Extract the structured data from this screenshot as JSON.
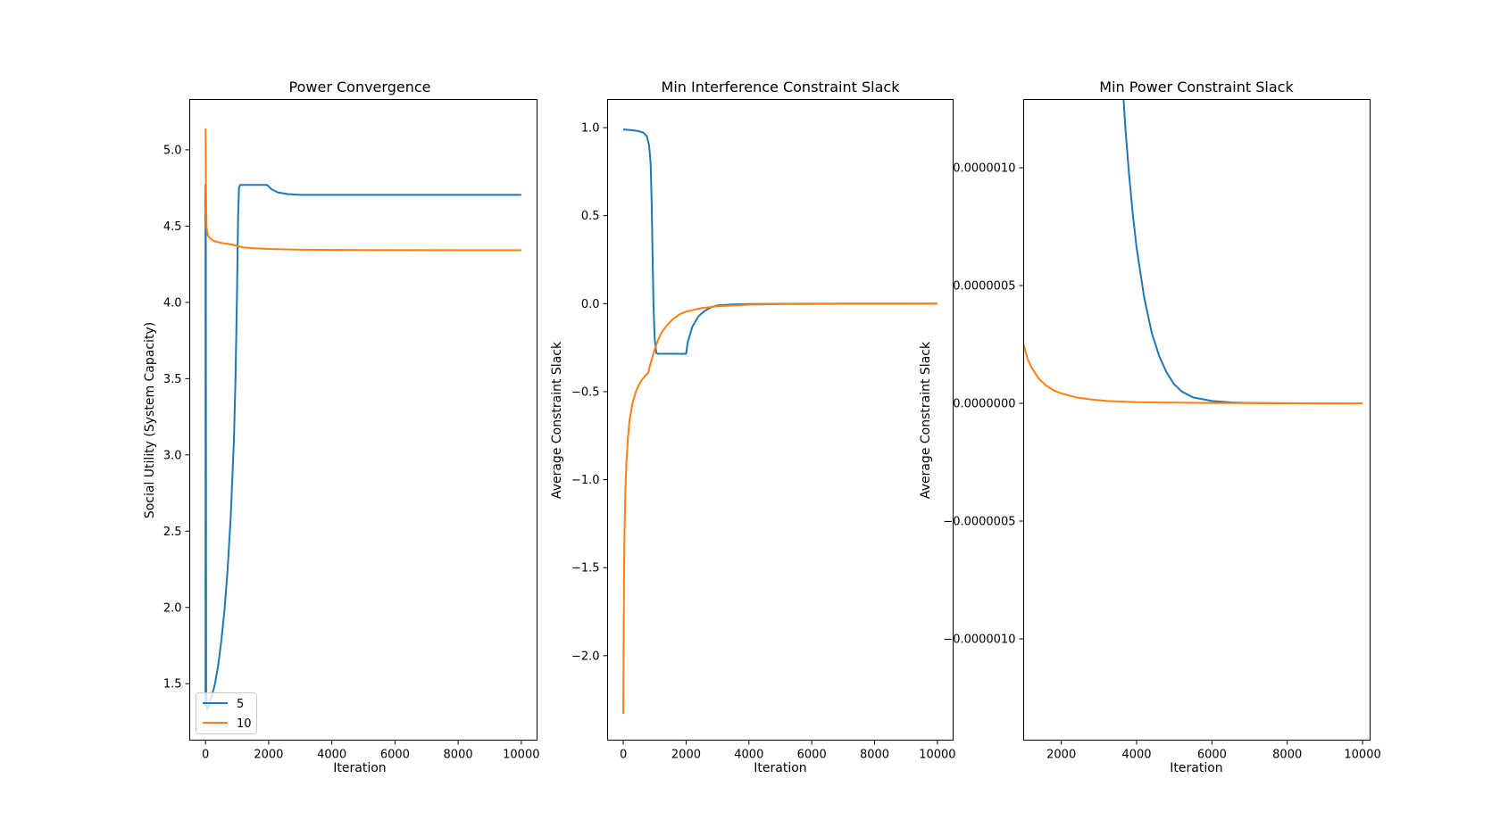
{
  "chart_data": [
    {
      "type": "line",
      "title": "Power Convergence",
      "xlabel": "Iteration",
      "ylabel": "Social Utility (System Capacity)",
      "xlim": [
        -500,
        10500
      ],
      "ylim": [
        1.13,
        5.33
      ],
      "xticks": [
        0,
        2000,
        4000,
        6000,
        8000,
        10000
      ],
      "xtick_labels": [
        "0",
        "2000",
        "4000",
        "6000",
        "8000",
        "10000"
      ],
      "yticks": [
        1.5,
        2.0,
        2.5,
        3.0,
        3.5,
        4.0,
        4.5,
        5.0
      ],
      "ytick_labels": [
        "1.5",
        "2.0",
        "2.5",
        "3.0",
        "3.5",
        "4.0",
        "4.5",
        "5.0"
      ],
      "legend": {
        "position": "lower-left",
        "entries": [
          "5",
          "10"
        ]
      },
      "series": [
        {
          "name": "5",
          "color": "#1f77b4",
          "points": [
            [
              0,
              1.35
            ],
            [
              0,
              4.77
            ],
            [
              10,
              4.4
            ],
            [
              20,
              1.45
            ],
            [
              50,
              1.33
            ],
            [
              100,
              1.35
            ],
            [
              200,
              1.42
            ],
            [
              300,
              1.5
            ],
            [
              400,
              1.62
            ],
            [
              500,
              1.78
            ],
            [
              600,
              1.98
            ],
            [
              700,
              2.25
            ],
            [
              800,
              2.6
            ],
            [
              900,
              3.1
            ],
            [
              950,
              3.5
            ],
            [
              1000,
              4.1
            ],
            [
              1030,
              4.55
            ],
            [
              1060,
              4.75
            ],
            [
              1100,
              4.77
            ],
            [
              1500,
              4.77
            ],
            [
              1950,
              4.77
            ],
            [
              2000,
              4.76
            ],
            [
              2100,
              4.74
            ],
            [
              2300,
              4.72
            ],
            [
              2600,
              4.71
            ],
            [
              3000,
              4.705
            ],
            [
              4000,
              4.705
            ],
            [
              6000,
              4.705
            ],
            [
              8000,
              4.705
            ],
            [
              10000,
              4.705
            ]
          ]
        },
        {
          "name": "10",
          "color": "#ff7f0e",
          "points": [
            [
              0,
              5.14
            ],
            [
              10,
              4.85
            ],
            [
              30,
              4.5
            ],
            [
              60,
              4.45
            ],
            [
              100,
              4.43
            ],
            [
              200,
              4.41
            ],
            [
              300,
              4.4
            ],
            [
              500,
              4.39
            ],
            [
              800,
              4.38
            ],
            [
              1000,
              4.37
            ],
            [
              1200,
              4.36
            ],
            [
              1500,
              4.355
            ],
            [
              2000,
              4.35
            ],
            [
              3000,
              4.345
            ],
            [
              5000,
              4.343
            ],
            [
              8000,
              4.342
            ],
            [
              10000,
              4.342
            ]
          ]
        }
      ]
    },
    {
      "type": "line",
      "title": "Min Interference Constraint Slack",
      "xlabel": "Iteration",
      "ylabel": "Average Constraint Slack",
      "xlim": [
        -500,
        10500
      ],
      "ylim": [
        -2.48,
        1.16
      ],
      "xticks": [
        0,
        2000,
        4000,
        6000,
        8000,
        10000
      ],
      "xtick_labels": [
        "0",
        "2000",
        "4000",
        "6000",
        "8000",
        "10000"
      ],
      "yticks": [
        -2.0,
        -1.5,
        -1.0,
        -0.5,
        0.0,
        0.5,
        1.0
      ],
      "ytick_labels": [
        "−2.0",
        "−1.5",
        "−1.0",
        "−0.5",
        "0.0",
        "0.5",
        "1.0"
      ],
      "series": [
        {
          "name": "",
          "color": "#1f77b4",
          "points": [
            [
              0,
              0.99
            ],
            [
              300,
              0.985
            ],
            [
              500,
              0.98
            ],
            [
              650,
              0.97
            ],
            [
              750,
              0.95
            ],
            [
              820,
              0.9
            ],
            [
              870,
              0.8
            ],
            [
              900,
              0.6
            ],
            [
              930,
              0.3
            ],
            [
              960,
              0.0
            ],
            [
              1000,
              -0.2
            ],
            [
              1050,
              -0.28
            ],
            [
              1100,
              -0.285
            ],
            [
              1500,
              -0.285
            ],
            [
              2000,
              -0.285
            ],
            [
              2050,
              -0.22
            ],
            [
              2200,
              -0.13
            ],
            [
              2400,
              -0.07
            ],
            [
              2600,
              -0.04
            ],
            [
              2800,
              -0.02
            ],
            [
              3000,
              -0.01
            ],
            [
              3500,
              -0.004
            ],
            [
              4000,
              -0.002
            ],
            [
              5000,
              -0.001
            ],
            [
              7000,
              0.0
            ],
            [
              10000,
              0.0
            ]
          ]
        },
        {
          "name": "",
          "color": "#ff7f0e",
          "points": [
            [
              0,
              -2.33
            ],
            [
              15,
              -1.8
            ],
            [
              30,
              -1.4
            ],
            [
              60,
              -1.1
            ],
            [
              100,
              -0.9
            ],
            [
              150,
              -0.76
            ],
            [
              200,
              -0.66
            ],
            [
              300,
              -0.56
            ],
            [
              400,
              -0.5
            ],
            [
              500,
              -0.46
            ],
            [
              600,
              -0.43
            ],
            [
              700,
              -0.41
            ],
            [
              800,
              -0.39
            ],
            [
              850,
              -0.35
            ],
            [
              900,
              -0.32
            ],
            [
              1000,
              -0.26
            ],
            [
              1100,
              -0.21
            ],
            [
              1200,
              -0.17
            ],
            [
              1400,
              -0.12
            ],
            [
              1600,
              -0.085
            ],
            [
              1800,
              -0.06
            ],
            [
              2000,
              -0.045
            ],
            [
              2500,
              -0.025
            ],
            [
              3000,
              -0.015
            ],
            [
              4000,
              -0.006
            ],
            [
              5000,
              -0.003
            ],
            [
              7000,
              -0.001
            ],
            [
              10000,
              -0.0005
            ]
          ]
        }
      ]
    },
    {
      "type": "line",
      "title": "Min Power Constraint Slack",
      "xlabel": "Iteration",
      "ylabel": "Average Constraint Slack",
      "xlim": [
        1000,
        10200
      ],
      "ylim": [
        -1.43e-06,
        1.29e-06
      ],
      "xticks": [
        2000,
        4000,
        6000,
        8000,
        10000
      ],
      "xtick_labels": [
        "2000",
        "4000",
        "6000",
        "8000",
        "10000"
      ],
      "yticks": [
        -1e-06,
        -5e-07,
        0.0,
        5e-07,
        1e-06
      ],
      "ytick_labels": [
        "−0.0000010",
        "−0.0000005",
        "0.0000000",
        "0.0000005",
        "0.0000010"
      ],
      "series": [
        {
          "name": "",
          "color": "#1f77b4",
          "points": [
            [
              3650,
              1.3e-06
            ],
            [
              3700,
              1.17e-06
            ],
            [
              3800,
              9.7e-07
            ],
            [
              3900,
              8e-07
            ],
            [
              4000,
              6.6e-07
            ],
            [
              4200,
              4.5e-07
            ],
            [
              4400,
              3e-07
            ],
            [
              4600,
              2e-07
            ],
            [
              4800,
              1.3e-07
            ],
            [
              5000,
              8e-08
            ],
            [
              5200,
              5e-08
            ],
            [
              5500,
              2.5e-08
            ],
            [
              6000,
              1e-08
            ],
            [
              6500,
              4e-09
            ],
            [
              7000,
              1.5e-09
            ],
            [
              8000,
              0.0
            ],
            [
              10000,
              0.0
            ]
          ]
        },
        {
          "name": "",
          "color": "#ff7f0e",
          "points": [
            [
              1000,
              2.5e-07
            ],
            [
              1100,
              1.9e-07
            ],
            [
              1200,
              1.55e-07
            ],
            [
              1400,
              1.05e-07
            ],
            [
              1600,
              7.5e-08
            ],
            [
              1800,
              5.5e-08
            ],
            [
              2000,
              4.2e-08
            ],
            [
              2400,
              2.5e-08
            ],
            [
              2800,
              1.6e-08
            ],
            [
              3200,
              1e-08
            ],
            [
              4000,
              5e-09
            ],
            [
              5000,
              3e-09
            ],
            [
              6000,
              1.5e-09
            ],
            [
              8000,
              5e-10
            ],
            [
              10000,
              0.0
            ]
          ]
        }
      ]
    }
  ]
}
